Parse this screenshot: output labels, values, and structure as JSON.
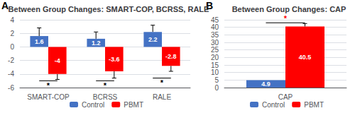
{
  "chart_data": [
    {
      "type": "bar",
      "panel_label": "A",
      "title": "Between Group Changes: SMART-COP, BCRSS, RALE",
      "categories": [
        "SMART-COP",
        "BCRSS",
        "RALE"
      ],
      "series": [
        {
          "name": "Control",
          "color": "#4472C4",
          "values": [
            1.6,
            1.2,
            2.2
          ],
          "error_up": [
            1.2,
            1.0,
            1.0
          ]
        },
        {
          "name": "PBMT",
          "color": "#FF0000",
          "values": [
            -4,
            -3.6,
            -2.8
          ],
          "error_down": [
            0.8,
            1.0,
            0.8
          ]
        }
      ],
      "ylim": [
        -6,
        4
      ],
      "yticks": [
        -6,
        -4,
        -2,
        0,
        2,
        4
      ],
      "grid": true,
      "data_labels": true,
      "legend": "bottom",
      "significance": [
        {
          "category": "SMART-COP",
          "y": -5.0,
          "text": "*",
          "color": "#000000"
        },
        {
          "category": "BCRSS",
          "y": -5.0,
          "text": "*",
          "color": "#000000"
        },
        {
          "category": "RALE",
          "y": -4.6,
          "text": "*",
          "color": "#000000"
        }
      ]
    },
    {
      "type": "bar",
      "panel_label": "B",
      "title": "Between Group Changes: CAP",
      "categories": [
        "CAP"
      ],
      "series": [
        {
          "name": "Control",
          "color": "#4472C4",
          "values": [
            4.9
          ]
        },
        {
          "name": "PBMT",
          "color": "#FF0000",
          "values": [
            40.5
          ],
          "error_up": [
            2.0
          ]
        }
      ],
      "ylim": [
        0,
        45
      ],
      "yticks": [
        0,
        5,
        10,
        15,
        20,
        25,
        30,
        35,
        40,
        45
      ],
      "grid": true,
      "data_labels": true,
      "legend": "bottom",
      "significance": [
        {
          "category": "CAP",
          "y": 43.0,
          "text": "*",
          "color": "#FF0000"
        }
      ]
    }
  ]
}
